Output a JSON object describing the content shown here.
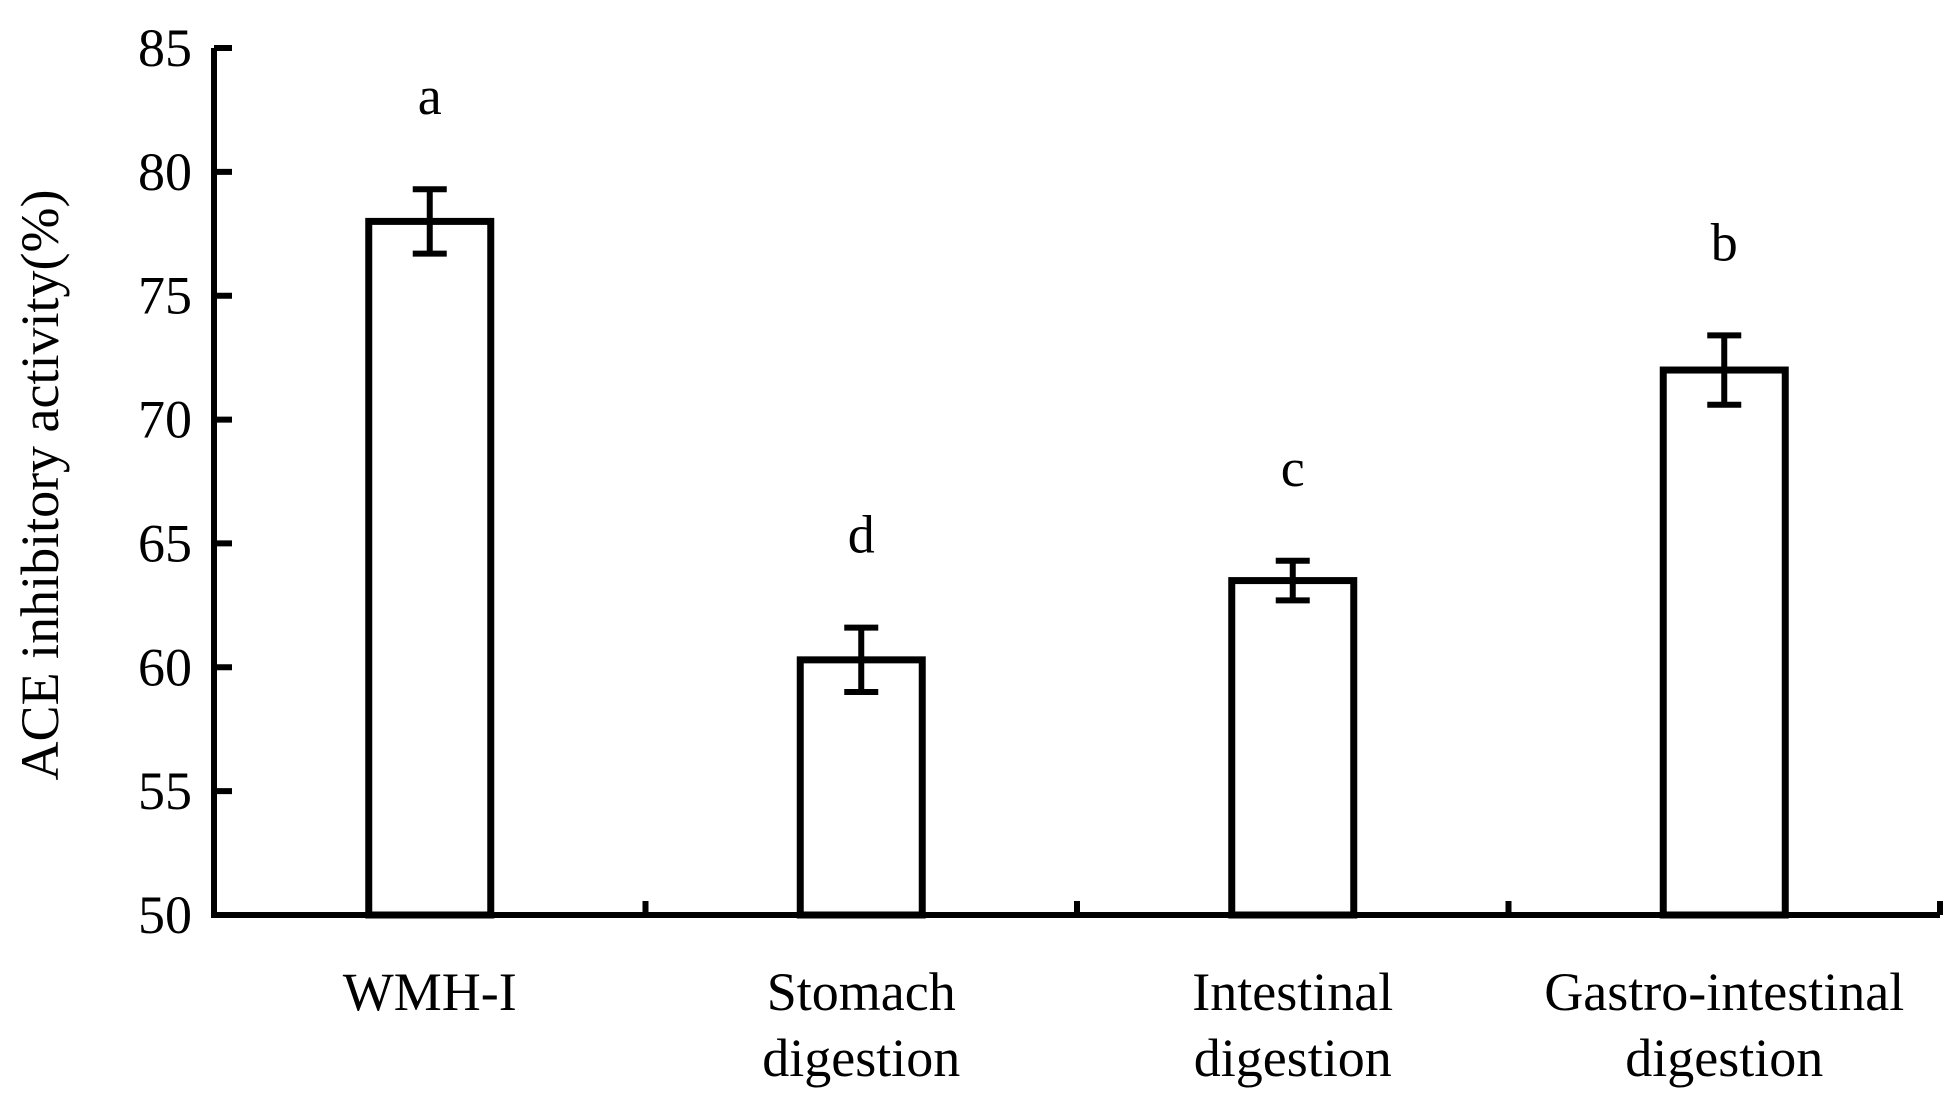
{
  "chart_data": {
    "type": "bar",
    "title": "",
    "xlabel": "",
    "ylabel": "ACE inhibitory activity(%)",
    "ylim": [
      50,
      85
    ],
    "yticks": [
      50,
      55,
      60,
      65,
      70,
      75,
      80,
      85
    ],
    "grid": false,
    "categories": [
      [
        "WMH-I"
      ],
      [
        "Stomach",
        "digestion"
      ],
      [
        "Intestinal",
        "digestion"
      ],
      [
        "Gastro-intestinal",
        "digestion"
      ]
    ],
    "values": [
      78.0,
      60.3,
      63.5,
      72.0
    ],
    "errors": [
      1.3,
      1.3,
      0.8,
      1.4
    ],
    "significance_letters": [
      "a",
      "d",
      "c",
      "b"
    ],
    "bar_fill": "#ffffff",
    "stroke_color": "#000000"
  }
}
